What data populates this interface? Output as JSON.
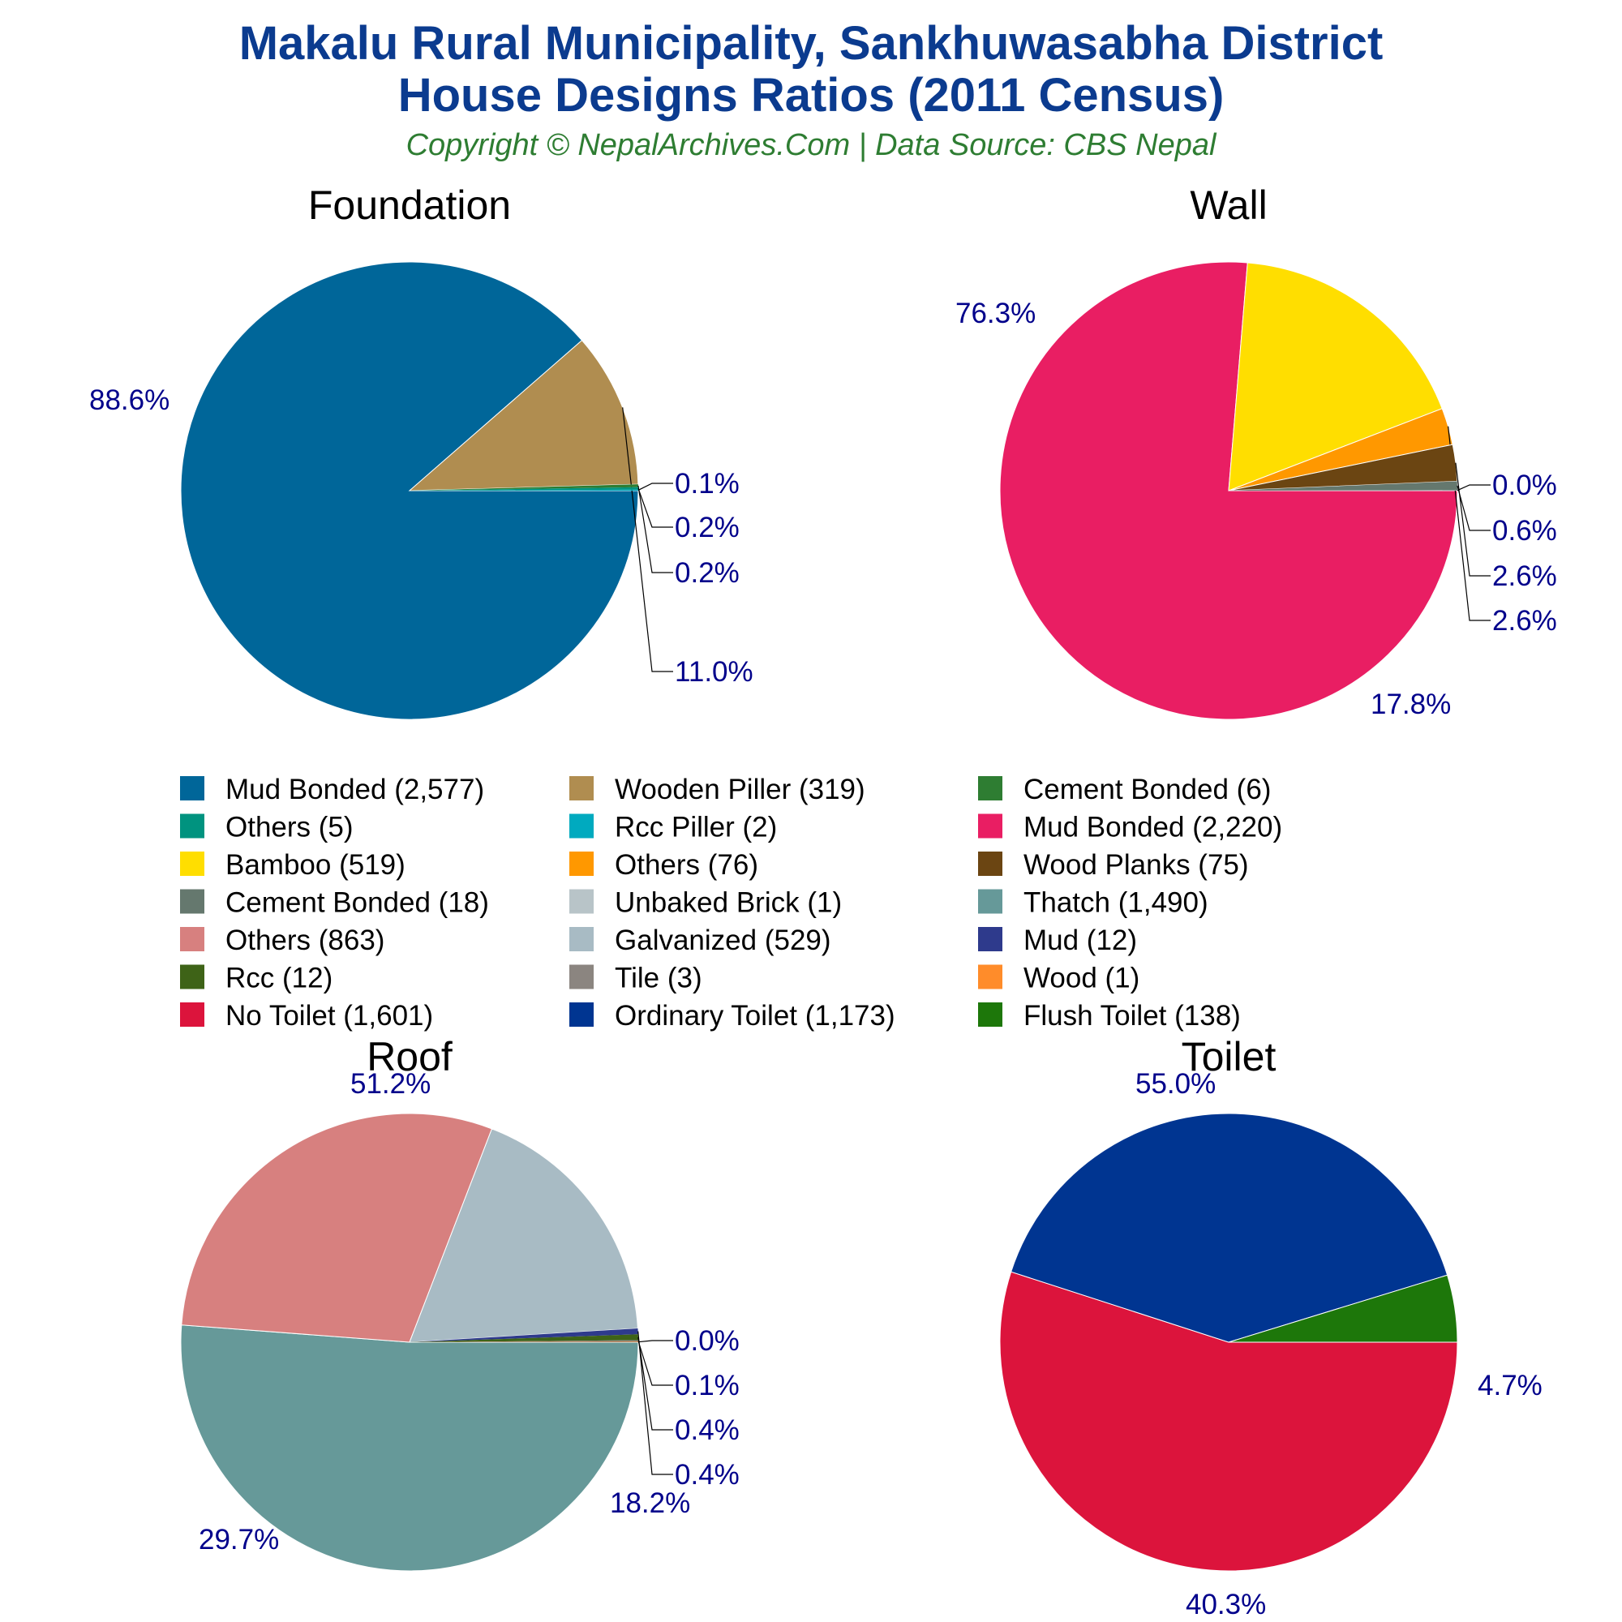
{
  "title_line1": "Makalu Rural Municipality, Sankhuwasabha District",
  "title_line2": "House Designs Ratios (2011 Census)",
  "subtitle": "Copyright © NepalArchives.Com | Data Source: CBS Nepal",
  "chart_data": [
    {
      "type": "pie",
      "title": "Foundation",
      "slices": [
        {
          "label": "Mud Bonded",
          "value": 2577,
          "pct_label": "88.6%",
          "color": "#006699"
        },
        {
          "label": "Wooden Piller",
          "value": 319,
          "pct_label": "11.0%",
          "color": "#b08d50"
        },
        {
          "label": "Cement Bonded",
          "value": 6,
          "pct_label": "0.2%",
          "color": "#2e7d32"
        },
        {
          "label": "Others",
          "value": 5,
          "pct_label": "0.2%",
          "color": "#00937f"
        },
        {
          "label": "Rcc Piller",
          "value": 2,
          "pct_label": "0.1%",
          "color": "#00aabf"
        }
      ]
    },
    {
      "type": "pie",
      "title": "Wall",
      "slices": [
        {
          "label": "Mud Bonded",
          "value": 2220,
          "pct_label": "76.3%",
          "color": "#e91e63"
        },
        {
          "label": "Bamboo",
          "value": 519,
          "pct_label": "17.8%",
          "color": "#ffde00"
        },
        {
          "label": "Others",
          "value": 76,
          "pct_label": "2.6%",
          "color": "#ff9800"
        },
        {
          "label": "Wood Planks",
          "value": 75,
          "pct_label": "2.6%",
          "color": "#6b4512"
        },
        {
          "label": "Cement Bonded",
          "value": 18,
          "pct_label": "0.6%",
          "color": "#65786e"
        },
        {
          "label": "Unbaked Brick",
          "value": 1,
          "pct_label": "0.0%",
          "color": "#b8c4c8"
        }
      ]
    },
    {
      "type": "pie",
      "title": "Roof",
      "slices": [
        {
          "label": "Thatch",
          "value": 1490,
          "pct_label": "51.2%",
          "color": "#669999"
        },
        {
          "label": "Others",
          "value": 863,
          "pct_label": "29.7%",
          "color": "#d7807f"
        },
        {
          "label": "Galvanized",
          "value": 529,
          "pct_label": "18.2%",
          "color": "#a8bbc4"
        },
        {
          "label": "Mud",
          "value": 12,
          "pct_label": "0.4%",
          "color": "#2e3a8c"
        },
        {
          "label": "Rcc",
          "value": 12,
          "pct_label": "0.4%",
          "color": "#3e6317"
        },
        {
          "label": "Tile",
          "value": 3,
          "pct_label": "0.1%",
          "color": "#8b8580"
        },
        {
          "label": "Wood",
          "value": 1,
          "pct_label": "0.0%",
          "color": "#ff8c2a"
        }
      ]
    },
    {
      "type": "pie",
      "title": "Toilet",
      "slices": [
        {
          "label": "No Toilet",
          "value": 1601,
          "pct_label": "55.0%",
          "color": "#dc143c"
        },
        {
          "label": "Ordinary Toilet",
          "value": 1173,
          "pct_label": "40.3%",
          "color": "#003591"
        },
        {
          "label": "Flush Toilet",
          "value": 138,
          "pct_label": "4.7%",
          "color": "#1d770a"
        }
      ]
    }
  ],
  "legend": [
    {
      "text": "Mud Bonded (2,577)",
      "color": "#006699"
    },
    {
      "text": "Wooden Piller (319)",
      "color": "#b08d50"
    },
    {
      "text": "Cement Bonded (6)",
      "color": "#2e7d32"
    },
    {
      "text": "Others (5)",
      "color": "#00937f"
    },
    {
      "text": "Rcc Piller (2)",
      "color": "#00aabf"
    },
    {
      "text": "Mud Bonded (2,220)",
      "color": "#e91e63"
    },
    {
      "text": "Bamboo (519)",
      "color": "#ffde00"
    },
    {
      "text": "Others (76)",
      "color": "#ff9800"
    },
    {
      "text": "Wood Planks (75)",
      "color": "#6b4512"
    },
    {
      "text": "Cement Bonded (18)",
      "color": "#65786e"
    },
    {
      "text": "Unbaked Brick (1)",
      "color": "#b8c4c8"
    },
    {
      "text": "Thatch (1,490)",
      "color": "#669999"
    },
    {
      "text": "Others (863)",
      "color": "#d7807f"
    },
    {
      "text": "Galvanized (529)",
      "color": "#a8bbc4"
    },
    {
      "text": "Mud (12)",
      "color": "#2e3a8c"
    },
    {
      "text": "Rcc (12)",
      "color": "#3e6317"
    },
    {
      "text": "Tile (3)",
      "color": "#8b8580"
    },
    {
      "text": "Wood (1)",
      "color": "#ff8c2a"
    },
    {
      "text": "No Toilet (1,601)",
      "color": "#dc143c"
    },
    {
      "text": "Ordinary Toilet (1,173)",
      "color": "#003591"
    },
    {
      "text": "Flush Toilet (138)",
      "color": "#1d770a"
    }
  ]
}
